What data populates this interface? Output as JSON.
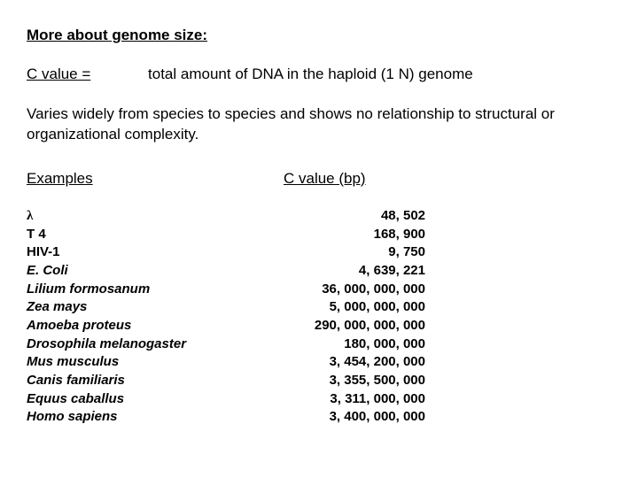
{
  "title": "More about genome size:",
  "definition": {
    "term": "C value =",
    "desc": "total amount of DNA in the haploid (1 N) genome"
  },
  "paragraph": "Varies widely from species to species and shows no relationship to structural or organizational complexity.",
  "headers": {
    "examples": "Examples",
    "cvalue": "C value (bp)"
  },
  "rows": [
    {
      "name": "λ",
      "value": "48, 502",
      "italic": false,
      "lambda": true
    },
    {
      "name": "T 4",
      "value": "168, 900",
      "italic": false
    },
    {
      "name": "HIV-1",
      "value": "9, 750",
      "italic": false
    },
    {
      "name": "E. Coli",
      "value": "4, 639, 221",
      "italic": true
    },
    {
      "name": "Lilium formosanum",
      "value": "36, 000, 000, 000",
      "italic": true
    },
    {
      "name": "Zea mays",
      "value": "5, 000, 000, 000",
      "italic": true
    },
    {
      "name": "Amoeba proteus",
      "value": "290, 000, 000, 000",
      "italic": true
    },
    {
      "name": "Drosophila melanogaster",
      "value": "180, 000, 000",
      "italic": true
    },
    {
      "name": "Mus musculus",
      "value": "3, 454, 200, 000",
      "italic": true
    },
    {
      "name": "Canis familiaris",
      "value": "3, 355, 500, 000",
      "italic": true
    },
    {
      "name": "Equus caballus",
      "value": "3, 311, 000, 000",
      "italic": true
    },
    {
      "name": "Homo sapiens",
      "value": "3, 400, 000, 000",
      "italic": true
    }
  ]
}
